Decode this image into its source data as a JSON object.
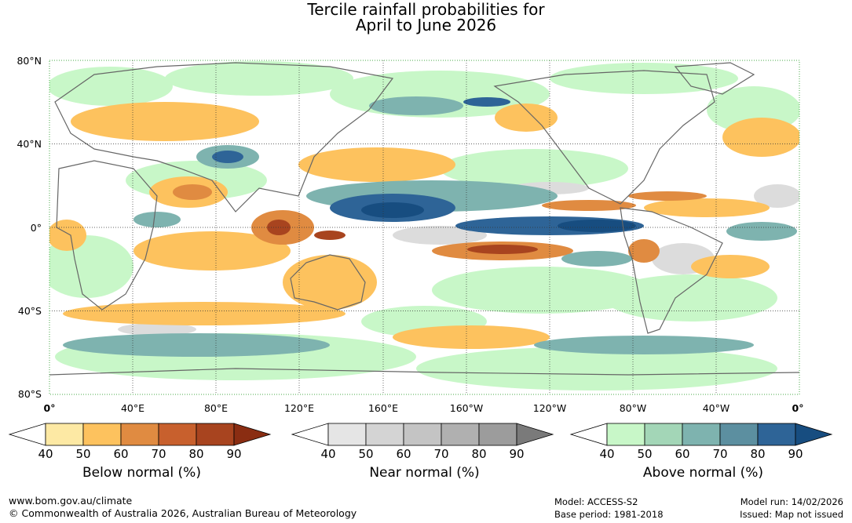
{
  "title": {
    "line1": "Tercile rainfall probabilities for",
    "line2": "April to June 2026"
  },
  "axes": {
    "lat_labels": [
      "80°N",
      "40°N",
      "0°",
      "40°S",
      "80°S"
    ],
    "lon_labels": [
      "0°",
      "40°E",
      "80°E",
      "120°E",
      "160°E",
      "160°W",
      "120°W",
      "80°W",
      "40°W",
      "0°"
    ]
  },
  "colorbars": [
    {
      "title": "Below normal (%)",
      "ticks": [
        "40",
        "50",
        "60",
        "70",
        "80",
        "90"
      ],
      "colors": [
        "#ffffff",
        "#fde9a4",
        "#fdc25e",
        "#e08b41",
        "#c8602d",
        "#a8441f",
        "#8a2d12"
      ]
    },
    {
      "title": "Near normal (%)",
      "ticks": [
        "40",
        "50",
        "60",
        "70",
        "80",
        "90"
      ],
      "colors": [
        "#ffffff",
        "#e5e5e5",
        "#d4d4d4",
        "#c4c4c4",
        "#b0b0b0",
        "#9c9c9c",
        "#7a7a7a"
      ]
    },
    {
      "title": "Above normal (%)",
      "ticks": [
        "40",
        "50",
        "60",
        "70",
        "80",
        "90"
      ],
      "colors": [
        "#ffffff",
        "#c8f7c8",
        "#a3d6b7",
        "#7eb3af",
        "#5c8fa0",
        "#2e6497",
        "#174d80"
      ]
    }
  ],
  "footer": {
    "url": "www.bom.gov.au/climate",
    "copyright": "© Commonwealth of Australia 2026, Australian Bureau of Meteorology",
    "model": "Model: ACCESS-S2",
    "base_period": "Base period: 1981-2018",
    "model_run": "Model run: 14/02/2026",
    "issued": "Issued: Map not issued"
  },
  "map_colors": {
    "land_outline": "#666666",
    "grid_green": "#44aa44",
    "grid_dark": "#333333"
  }
}
